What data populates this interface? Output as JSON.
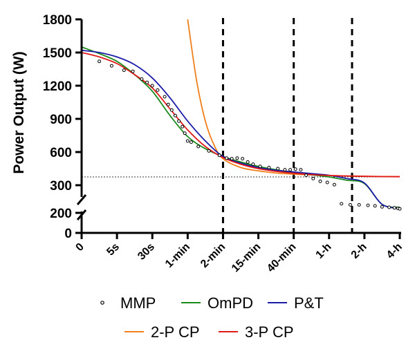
{
  "chart_data": {
    "type": "line",
    "title": "",
    "xlabel": "",
    "ylabel": "Power Output (W)",
    "x_scale": "categorical-duration",
    "x_ticks": [
      "0",
      "5s",
      "30s",
      "1-min",
      "2-min",
      "15-min",
      "40-min",
      "1-h",
      "2-h",
      "4-h"
    ],
    "y_ticks": [
      0,
      200,
      300,
      600,
      900,
      1200,
      1500,
      1800
    ],
    "y_axis_break": [
      200,
      300
    ],
    "ylim": [
      0,
      1800
    ],
    "vertical_reference_lines_at": [
      "2-min",
      "40-min",
      "2-h (approx. 3 h)"
    ],
    "horizontal_reference_line": 375,
    "grid": false,
    "legend_position": "bottom",
    "legend": [
      "MMP",
      "OmPD",
      "P&T",
      "2-P CP",
      "3-P CP"
    ],
    "colors": {
      "MMP": "#000000",
      "OmPD": "#1a8a1a",
      "P&T": "#1a1aa8",
      "2-P CP": "#f07f1a",
      "3-P CP": "#e01818"
    },
    "series": [
      {
        "name": "MMP",
        "style": "markers",
        "x_index": [
          0.5,
          0.85,
          1.2,
          1.45,
          1.7,
          1.85,
          2.0,
          2.15,
          2.35,
          2.45,
          2.55,
          2.65,
          2.75,
          2.85,
          2.92,
          3.0,
          3.1,
          3.3,
          3.6,
          3.9,
          4.1,
          4.25,
          4.4,
          4.55,
          4.7,
          4.85,
          5.05,
          5.3,
          5.55,
          5.75,
          5.9,
          6.05,
          6.2,
          6.35,
          6.55,
          6.75,
          6.95,
          7.15,
          7.35,
          7.6,
          7.85,
          8.1,
          8.3,
          8.5,
          8.7,
          8.85,
          8.95,
          9.0
        ],
        "values": [
          1420,
          1380,
          1340,
          1330,
          1260,
          1230,
          1200,
          1160,
          1100,
          1030,
          980,
          930,
          880,
          830,
          770,
          700,
          690,
          650,
          610,
          570,
          545,
          540,
          545,
          540,
          510,
          490,
          470,
          460,
          450,
          440,
          440,
          445,
          440,
          390,
          360,
          335,
          325,
          305,
          290,
          280,
          280,
          275,
          270,
          260,
          255,
          250,
          245,
          240
        ]
      },
      {
        "name": "OmPD",
        "style": "line",
        "x_index": [
          0.0,
          0.5,
          1.0,
          1.5,
          2.0,
          2.5,
          3.0,
          3.5,
          4.0,
          4.5,
          5.0,
          5.5,
          6.0,
          6.5,
          7.0,
          7.5,
          8.0,
          8.5,
          9.0
        ],
        "values": [
          1550,
          1490,
          1420,
          1300,
          1150,
          930,
          740,
          630,
          560,
          510,
          470,
          440,
          415,
          395,
          375,
          345,
          315,
          285,
          255
        ]
      },
      {
        "name": "P&T",
        "style": "line",
        "x_index": [
          0.0,
          0.5,
          1.0,
          1.5,
          2.0,
          2.5,
          3.0,
          3.5,
          4.0,
          4.5,
          5.0,
          5.5,
          6.0,
          6.5,
          7.0,
          7.5,
          8.0,
          8.5,
          9.0
        ],
        "values": [
          1520,
          1500,
          1460,
          1390,
          1270,
          1090,
          880,
          700,
          560,
          500,
          460,
          435,
          420,
          405,
          390,
          360,
          320,
          285,
          245
        ]
      },
      {
        "name": "2-P CP",
        "style": "line",
        "x_index": [
          3.0,
          3.25,
          3.5,
          3.75,
          4.0,
          4.5,
          5.0,
          5.5,
          6.0,
          6.5,
          7.0,
          7.5,
          8.0,
          8.5,
          9.0
        ],
        "values": [
          1800,
          1250,
          880,
          660,
          540,
          460,
          430,
          410,
          400,
          393,
          388,
          384,
          381,
          379,
          378
        ]
      },
      {
        "name": "3-P CP",
        "style": "line",
        "x_index": [
          0.0,
          0.5,
          1.0,
          1.5,
          2.0,
          2.5,
          3.0,
          3.5,
          4.0,
          4.5,
          5.0,
          5.5,
          6.0,
          6.5,
          7.0,
          7.5,
          8.0,
          8.5,
          9.0
        ],
        "values": [
          1500,
          1460,
          1400,
          1300,
          1180,
          990,
          800,
          650,
          550,
          490,
          450,
          425,
          408,
          396,
          388,
          383,
          380,
          378,
          377
        ]
      }
    ]
  }
}
